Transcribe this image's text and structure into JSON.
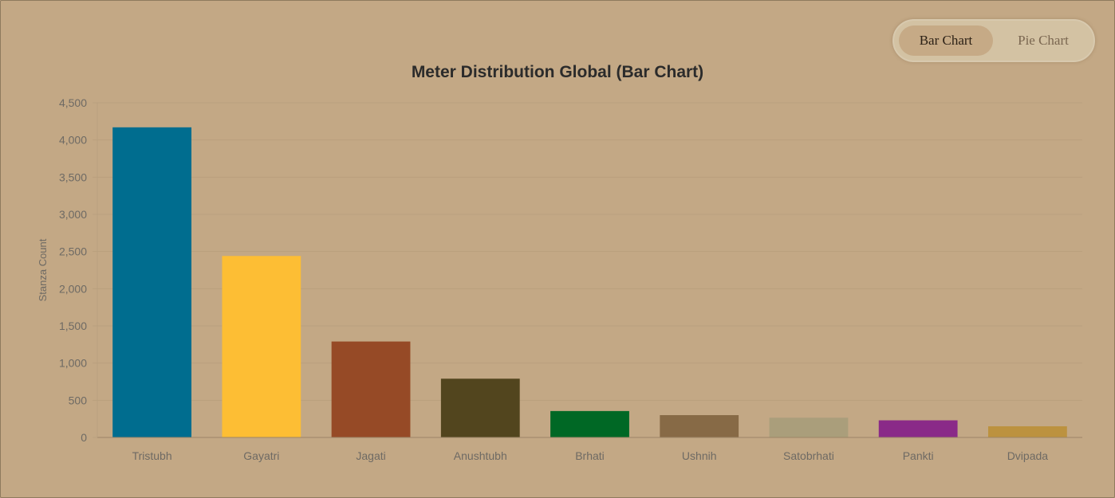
{
  "toggle": {
    "bar_label": "Bar Chart",
    "pie_label": "Pie Chart",
    "active": "bar"
  },
  "chart_data": {
    "type": "bar",
    "title": "Meter Distribution Global (Bar Chart)",
    "xlabel": "",
    "ylabel": "Stanza Count",
    "ylim": [
      0,
      4500
    ],
    "yticks": [
      0,
      500,
      1000,
      1500,
      2000,
      2500,
      3000,
      3500,
      4000,
      4500
    ],
    "ytick_labels": [
      "0",
      "500",
      "1,000",
      "1,500",
      "2,000",
      "2,500",
      "3,000",
      "3,500",
      "4,000",
      "4,500"
    ],
    "grid": true,
    "categories": [
      "Tristubh",
      "Gayatri",
      "Jagati",
      "Anushtubh",
      "Brhati",
      "Ushnih",
      "Satobrhati",
      "Pankti",
      "Dvipada"
    ],
    "values": [
      4170,
      2440,
      1290,
      790,
      355,
      300,
      265,
      230,
      150
    ],
    "colors": [
      "#006d8f",
      "#fdbe34",
      "#964a26",
      "#52451e",
      "#006825",
      "#876a46",
      "#aa9e7b",
      "#8a2a88",
      "#bc923f"
    ]
  }
}
